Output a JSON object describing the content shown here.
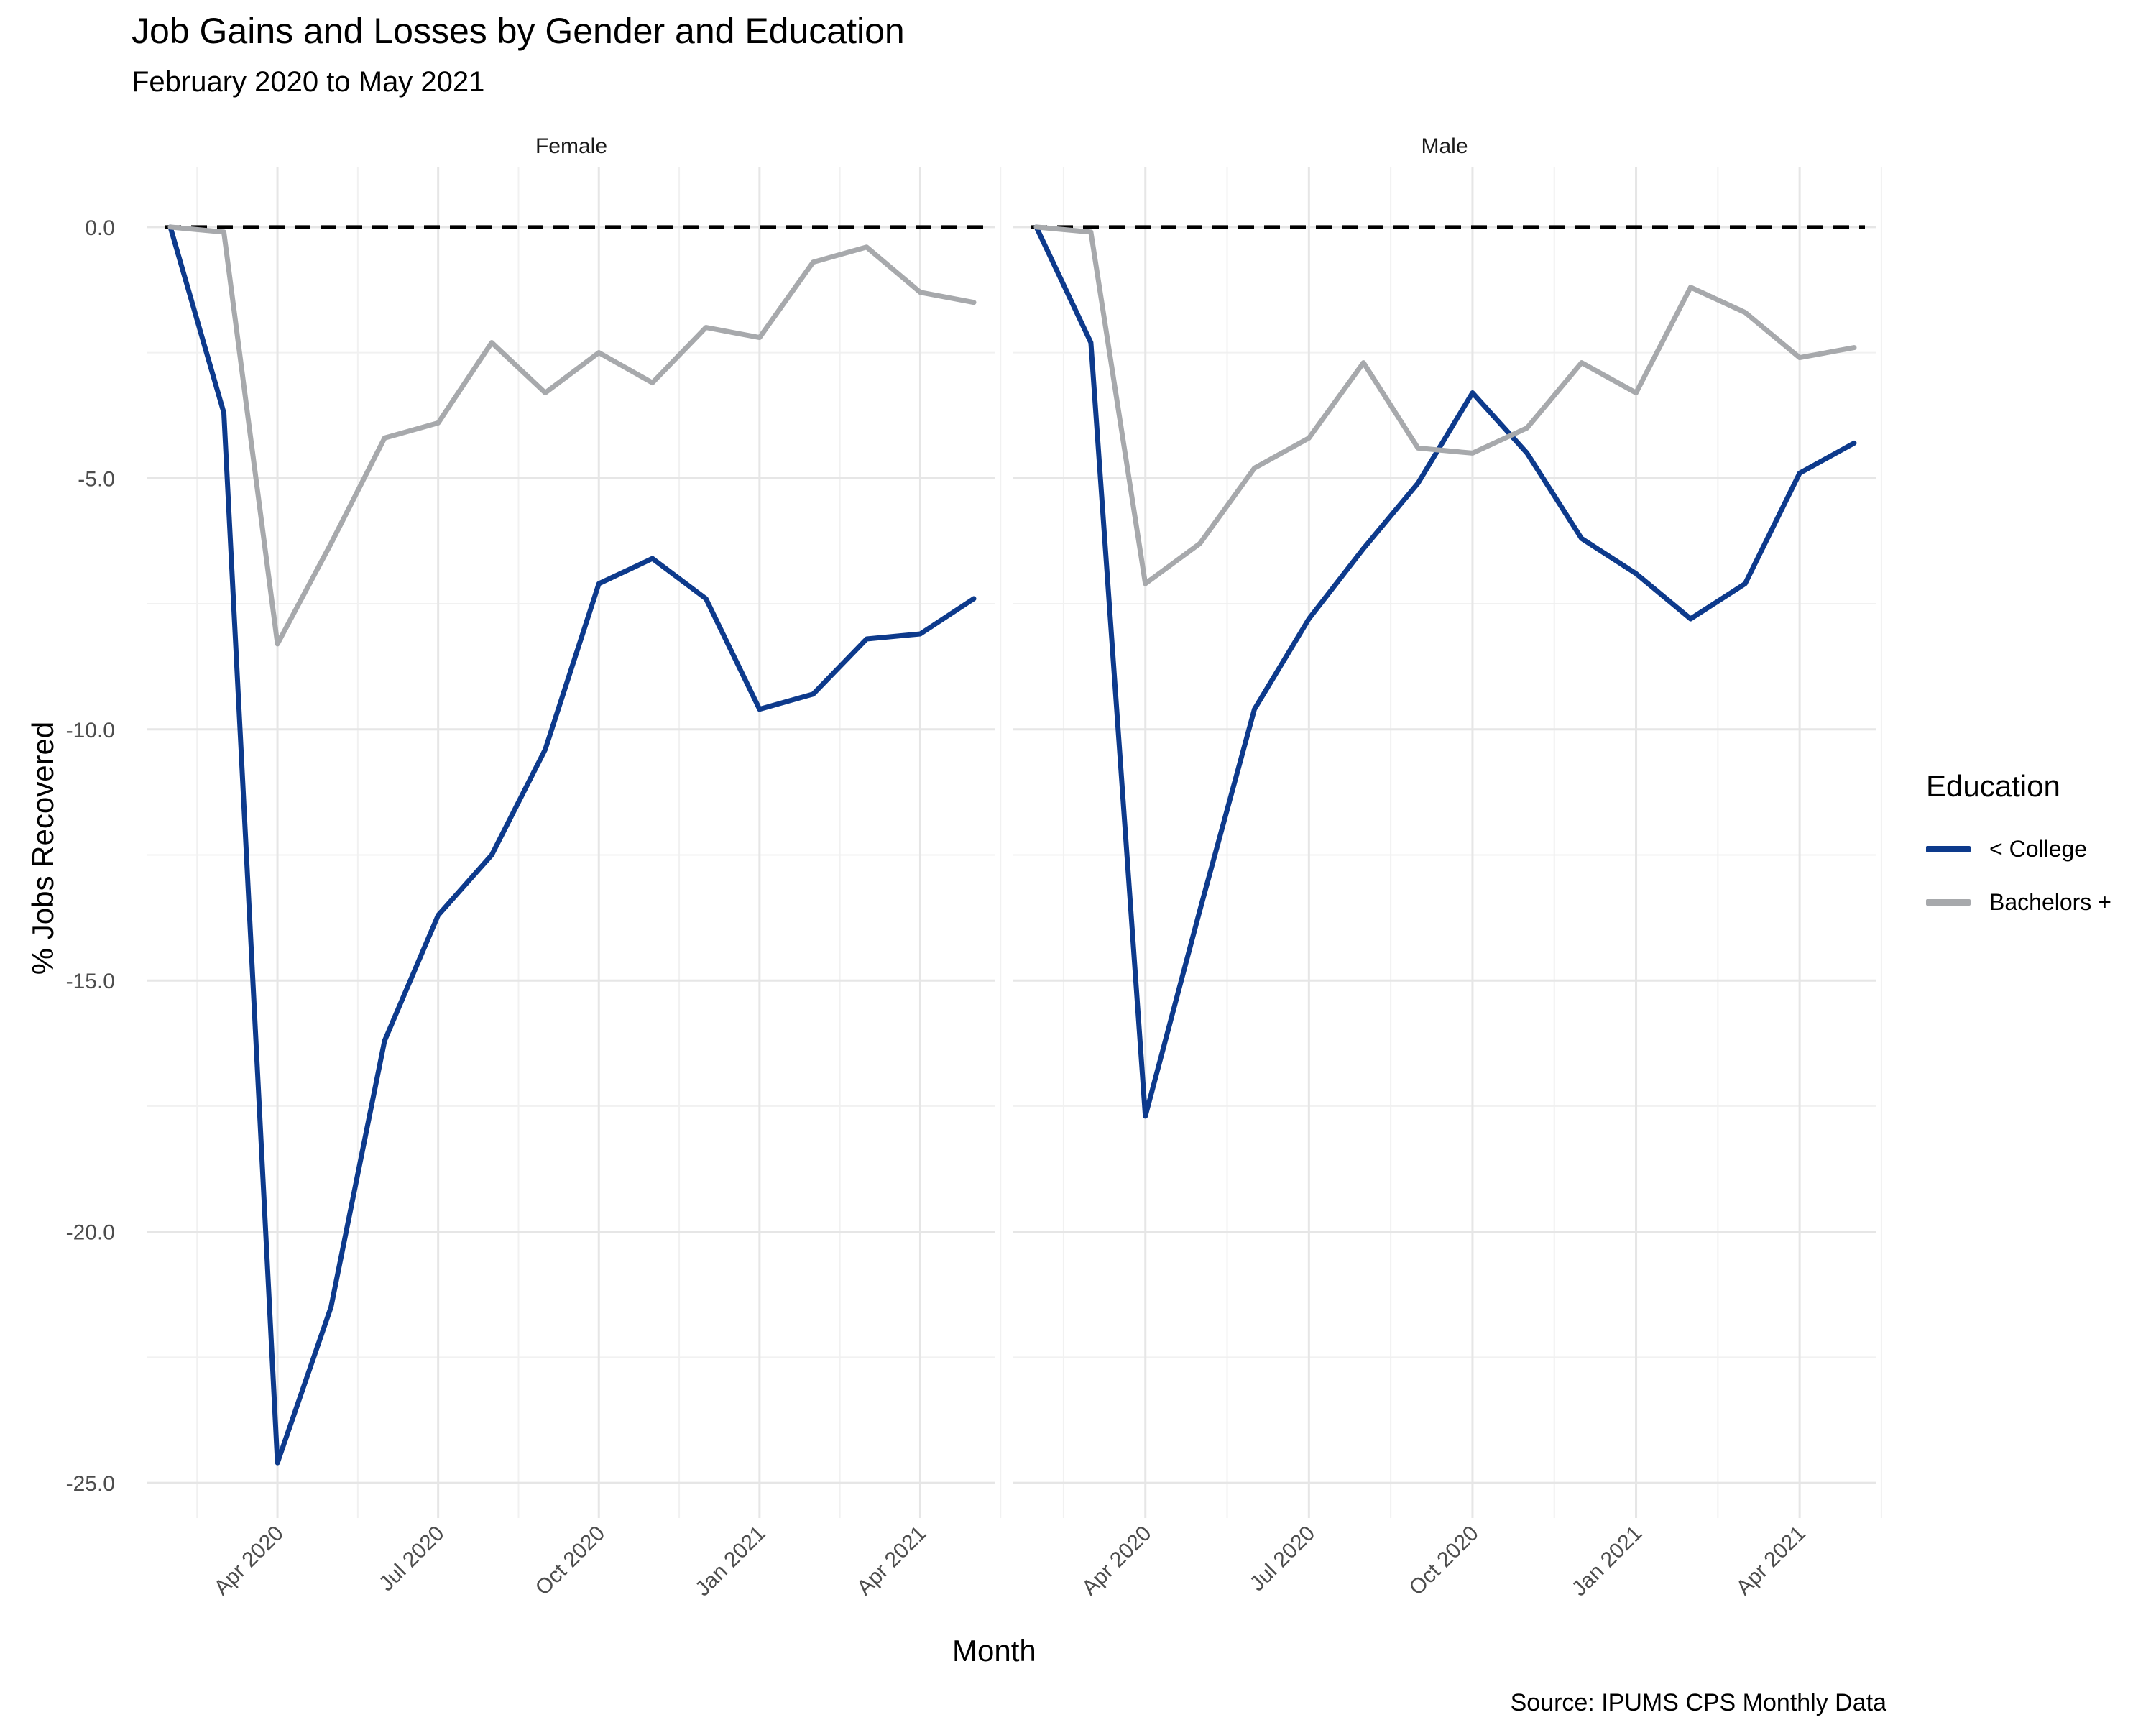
{
  "chart_data": {
    "type": "line",
    "title": "Job Gains and Losses by Gender and Education",
    "subtitle": "February 2020 to May 2021",
    "xlabel": "Month",
    "ylabel": "% Jobs Recovered",
    "caption": "Source: IPUMS CPS Monthly Data",
    "ylim": [
      -25.7,
      1.2
    ],
    "yticks": [
      "0.0",
      "-5.0",
      "-10.0",
      "-15.0",
      "-20.0",
      "-25.0"
    ],
    "ytick_values": [
      0,
      -5,
      -10,
      -15,
      -20,
      -25
    ],
    "xtick_labels": [
      "Apr 2020",
      "Jul 2020",
      "Oct 2020",
      "Jan 2021",
      "Apr 2021"
    ],
    "xtick_values": [
      2,
      5,
      8,
      11,
      14
    ],
    "x": [
      "2020-02",
      "2020-03",
      "2020-04",
      "2020-05",
      "2020-06",
      "2020-07",
      "2020-08",
      "2020-09",
      "2020-10",
      "2020-11",
      "2020-12",
      "2021-01",
      "2021-02",
      "2021-03",
      "2021-04",
      "2021-05"
    ],
    "reference_line": 0,
    "grid": true,
    "legend": {
      "title": "Education",
      "position": "right",
      "items": [
        {
          "label": "< College",
          "color": "#0d3a8c"
        },
        {
          "label": "Bachelors +",
          "color": "#a7a9ac"
        }
      ]
    },
    "panels": [
      {
        "name": "Female",
        "series": [
          {
            "name": "< College",
            "color": "#0d3a8c",
            "values": [
              0.0,
              -3.7,
              -24.6,
              -21.5,
              -16.2,
              -13.7,
              -12.5,
              -10.4,
              -7.1,
              -6.6,
              -7.4,
              -9.6,
              -9.3,
              -8.2,
              -8.1,
              -7.4
            ]
          },
          {
            "name": "Bachelors +",
            "color": "#a7a9ac",
            "values": [
              0.0,
              -0.1,
              -8.3,
              -6.3,
              -4.2,
              -3.9,
              -2.3,
              -3.3,
              -2.5,
              -3.1,
              -2.0,
              -2.2,
              -0.7,
              -0.4,
              -1.3,
              -1.5
            ]
          }
        ]
      },
      {
        "name": "Male",
        "series": [
          {
            "name": "< College",
            "color": "#0d3a8c",
            "values": [
              0.0,
              -2.3,
              -17.7,
              -13.6,
              -9.6,
              -7.8,
              -6.4,
              -5.1,
              -3.3,
              -4.5,
              -6.2,
              -6.9,
              -7.8,
              -7.1,
              -4.9,
              -4.3
            ]
          },
          {
            "name": "Bachelors +",
            "color": "#a7a9ac",
            "values": [
              0.0,
              -0.1,
              -7.1,
              -6.3,
              -4.8,
              -4.2,
              -2.7,
              -4.4,
              -4.5,
              -4.0,
              -2.7,
              -3.3,
              -1.2,
              -1.7,
              -2.6,
              -2.4
            ]
          }
        ]
      }
    ]
  }
}
